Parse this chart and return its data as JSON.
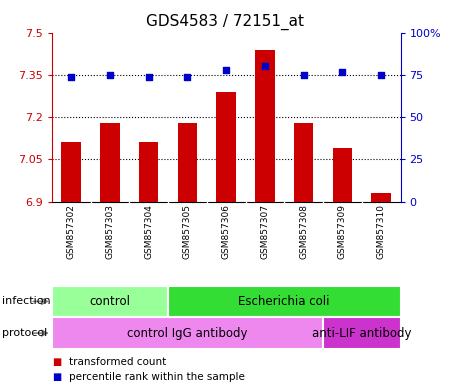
{
  "title": "GDS4583 / 72151_at",
  "samples": [
    "GSM857302",
    "GSM857303",
    "GSM857304",
    "GSM857305",
    "GSM857306",
    "GSM857307",
    "GSM857308",
    "GSM857309",
    "GSM857310"
  ],
  "bar_values": [
    7.11,
    7.18,
    7.11,
    7.18,
    7.29,
    7.44,
    7.18,
    7.09,
    6.93
  ],
  "percentile_values": [
    74,
    75,
    74,
    74,
    78,
    80,
    75,
    77,
    75
  ],
  "ylim_left": [
    6.9,
    7.5
  ],
  "ylim_right": [
    0,
    100
  ],
  "yticks_left": [
    6.9,
    7.05,
    7.2,
    7.35,
    7.5
  ],
  "yticks_right": [
    0,
    25,
    50,
    75,
    100
  ],
  "ytick_labels_left": [
    "6.9",
    "7.05",
    "7.2",
    "7.35",
    "7.5"
  ],
  "ytick_labels_right": [
    "0",
    "25",
    "50",
    "75",
    "100%"
  ],
  "hlines": [
    7.05,
    7.2,
    7.35
  ],
  "bar_color": "#cc0000",
  "percentile_color": "#0000cc",
  "infection_groups": [
    {
      "label": "control",
      "start": 0,
      "end": 3,
      "color": "#99ff99"
    },
    {
      "label": "Escherichia coli",
      "start": 3,
      "end": 9,
      "color": "#33dd33"
    }
  ],
  "protocol_groups": [
    {
      "label": "control IgG antibody",
      "start": 0,
      "end": 7,
      "color": "#ee88ee"
    },
    {
      "label": "anti-LIF antibody",
      "start": 7,
      "end": 9,
      "color": "#cc33cc"
    }
  ],
  "legend_items": [
    {
      "label": "transformed count",
      "color": "#cc0000"
    },
    {
      "label": "percentile rank within the sample",
      "color": "#0000cc"
    }
  ],
  "xlabel_infection": "infection",
  "xlabel_protocol": "protocol",
  "plot_bg_color": "#ffffff",
  "title_fontsize": 11,
  "bar_width": 0.5
}
